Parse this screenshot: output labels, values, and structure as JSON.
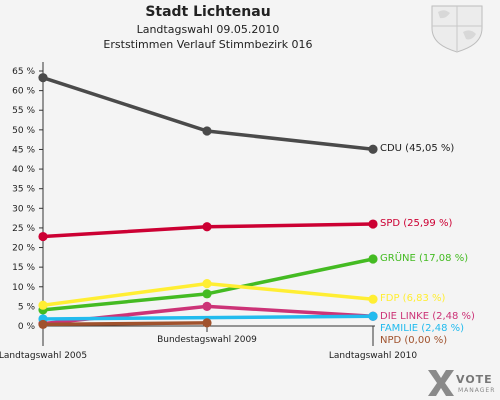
{
  "header": {
    "title": "Stadt Lichtenau",
    "subtitle1": "Landtagswahl 09.05.2010",
    "subtitle2": "Erststimmen Verlauf Stimmbezirk 016"
  },
  "logo": {
    "text": "VOTE",
    "subtext": "MANAGER"
  },
  "chart_data": {
    "type": "line",
    "x": [
      "Landtagswahl 2005",
      "Bundestagswahl 2009",
      "Landtagswahl 2010"
    ],
    "ylim": [
      0,
      65
    ],
    "y_ticks": [
      "0 %",
      "5 %",
      "10 %",
      "15 %",
      "20 %",
      "25 %",
      "30 %",
      "35 %",
      "40 %",
      "45 %",
      "50 %",
      "55 %",
      "60 %",
      "65 %"
    ],
    "grid": false,
    "series": [
      {
        "name": "CDU",
        "color": "#4a4a4a",
        "values": [
          63.3,
          49.7,
          45.05
        ],
        "label": "CDU (45,05 %)"
      },
      {
        "name": "SPD",
        "color": "#cc0033",
        "values": [
          22.8,
          25.3,
          25.99
        ],
        "label": "SPD (25,99 %)"
      },
      {
        "name": "GRÜNE",
        "color": "#44bb22",
        "values": [
          4.1,
          8.2,
          17.08
        ],
        "label": "GRÜNE (17,08 %)"
      },
      {
        "name": "FDP",
        "color": "#ffee33",
        "values": [
          5.3,
          10.8,
          6.83
        ],
        "label": "FDP (6,83 %)"
      },
      {
        "name": "DIE LINKE",
        "color": "#cc3377",
        "values": [
          0.6,
          5.0,
          2.48
        ],
        "label": "DIE LINKE (2,48 %)"
      },
      {
        "name": "FAMILIE",
        "color": "#22bbee",
        "values": [
          1.8,
          null,
          2.48
        ],
        "label": "FAMILIE (2,48 %)"
      },
      {
        "name": "NPD",
        "color": "#a0522d",
        "values": [
          0.4,
          0.8,
          null
        ],
        "label": "NPD (0,00 %)"
      }
    ]
  }
}
